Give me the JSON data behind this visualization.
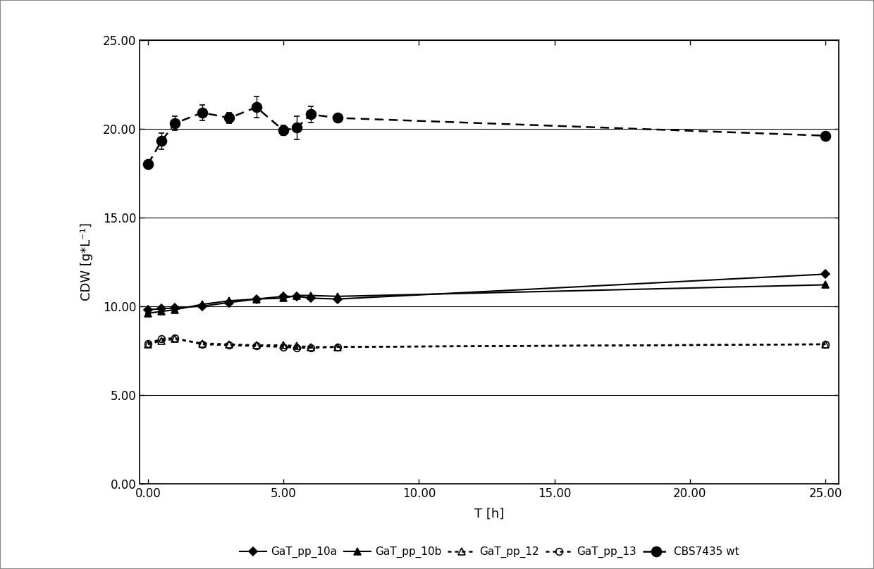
{
  "title": "",
  "xlabel": "T [h]",
  "ylabel": "CDW [g*L⁻¹]",
  "xlim": [
    -0.3,
    25.5
  ],
  "ylim": [
    0,
    25
  ],
  "xticks": [
    0,
    5,
    10,
    15,
    20,
    25
  ],
  "xticklabels": [
    "0.00",
    "5.00",
    "10.00",
    "15.00",
    "20.00",
    "25.00"
  ],
  "yticks": [
    0,
    5,
    10,
    15,
    20,
    25
  ],
  "yticklabels": [
    "0.00",
    "5.00",
    "10.00",
    "15.00",
    "20.00",
    "25.00"
  ],
  "series": {
    "GaT_pp_10a": {
      "x": [
        0.0,
        0.5,
        1.0,
        2.0,
        3.0,
        4.0,
        5.0,
        5.5,
        6.0,
        7.0,
        25.0
      ],
      "y": [
        9.8,
        9.85,
        9.9,
        10.0,
        10.2,
        10.4,
        10.55,
        10.55,
        10.45,
        10.4,
        11.8
      ],
      "yerr": [
        0.0,
        0.0,
        0.0,
        0.0,
        0.0,
        0.0,
        0.0,
        0.0,
        0.0,
        0.0,
        0.0
      ],
      "color": "#000000",
      "linestyle": "solid",
      "marker": "D",
      "markersize": 6,
      "fillstyle": "full",
      "linewidth": 1.5
    },
    "GaT_pp_10b": {
      "x": [
        0.0,
        0.5,
        1.0,
        2.0,
        3.0,
        4.0,
        5.0,
        5.5,
        6.0,
        7.0,
        25.0
      ],
      "y": [
        9.6,
        9.7,
        9.8,
        10.1,
        10.3,
        10.4,
        10.45,
        10.6,
        10.6,
        10.55,
        11.2
      ],
      "yerr": [
        0.0,
        0.0,
        0.0,
        0.0,
        0.0,
        0.0,
        0.15,
        0.0,
        0.0,
        0.0,
        0.0
      ],
      "color": "#000000",
      "linestyle": "solid",
      "marker": "^",
      "markersize": 7,
      "fillstyle": "full",
      "linewidth": 1.5
    },
    "GaT_pp_12": {
      "x": [
        0.0,
        0.5,
        1.0,
        2.0,
        3.0,
        4.0,
        5.0,
        5.5,
        6.0,
        7.0,
        25.0
      ],
      "y": [
        7.85,
        8.05,
        8.15,
        7.9,
        7.85,
        7.8,
        7.8,
        7.75,
        7.7,
        7.7,
        7.85
      ],
      "yerr": [
        0.0,
        0.0,
        0.0,
        0.0,
        0.0,
        0.0,
        0.0,
        0.0,
        0.0,
        0.0,
        0.0
      ],
      "color": "#000000",
      "linestyle": "dotted",
      "marker": "^",
      "markersize": 7,
      "fillstyle": "none",
      "linewidth": 1.8
    },
    "GaT_pp_13": {
      "x": [
        0.0,
        0.5,
        1.0,
        2.0,
        3.0,
        4.0,
        5.0,
        5.5,
        6.0,
        7.0,
        25.0
      ],
      "y": [
        7.9,
        8.15,
        8.2,
        7.85,
        7.8,
        7.75,
        7.7,
        7.65,
        7.65,
        7.7,
        7.85
      ],
      "yerr": [
        0.0,
        0.0,
        0.0,
        0.0,
        0.0,
        0.0,
        0.0,
        0.0,
        0.0,
        0.0,
        0.0
      ],
      "color": "#000000",
      "linestyle": "dotted",
      "marker": "o",
      "markersize": 7,
      "fillstyle": "none",
      "linewidth": 1.8
    },
    "CBS7435 wt": {
      "x": [
        0.0,
        0.5,
        1.0,
        2.0,
        3.0,
        4.0,
        5.0,
        5.5,
        6.0,
        7.0,
        25.0
      ],
      "y": [
        18.0,
        19.3,
        20.3,
        20.9,
        20.6,
        21.2,
        19.9,
        20.05,
        20.8,
        20.6,
        19.6
      ],
      "yerr": [
        0.0,
        0.45,
        0.38,
        0.45,
        0.28,
        0.6,
        0.28,
        0.65,
        0.45,
        0.18,
        0.0
      ],
      "color": "#000000",
      "linestyle": "dashed",
      "marker": "o",
      "markersize": 10,
      "fillstyle": "full",
      "linewidth": 1.8
    }
  },
  "legend_labels": [
    "GaT_pp_10a",
    "GaT_pp_10b",
    "GaT_pp_12",
    "GaT_pp_13",
    "CBS7435 wt"
  ],
  "background_color": "#ffffff",
  "plot_bg_color": "#ffffff",
  "outer_border_color": "#aaaaaa",
  "grid_color": "#000000",
  "grid_linewidth": 0.8
}
